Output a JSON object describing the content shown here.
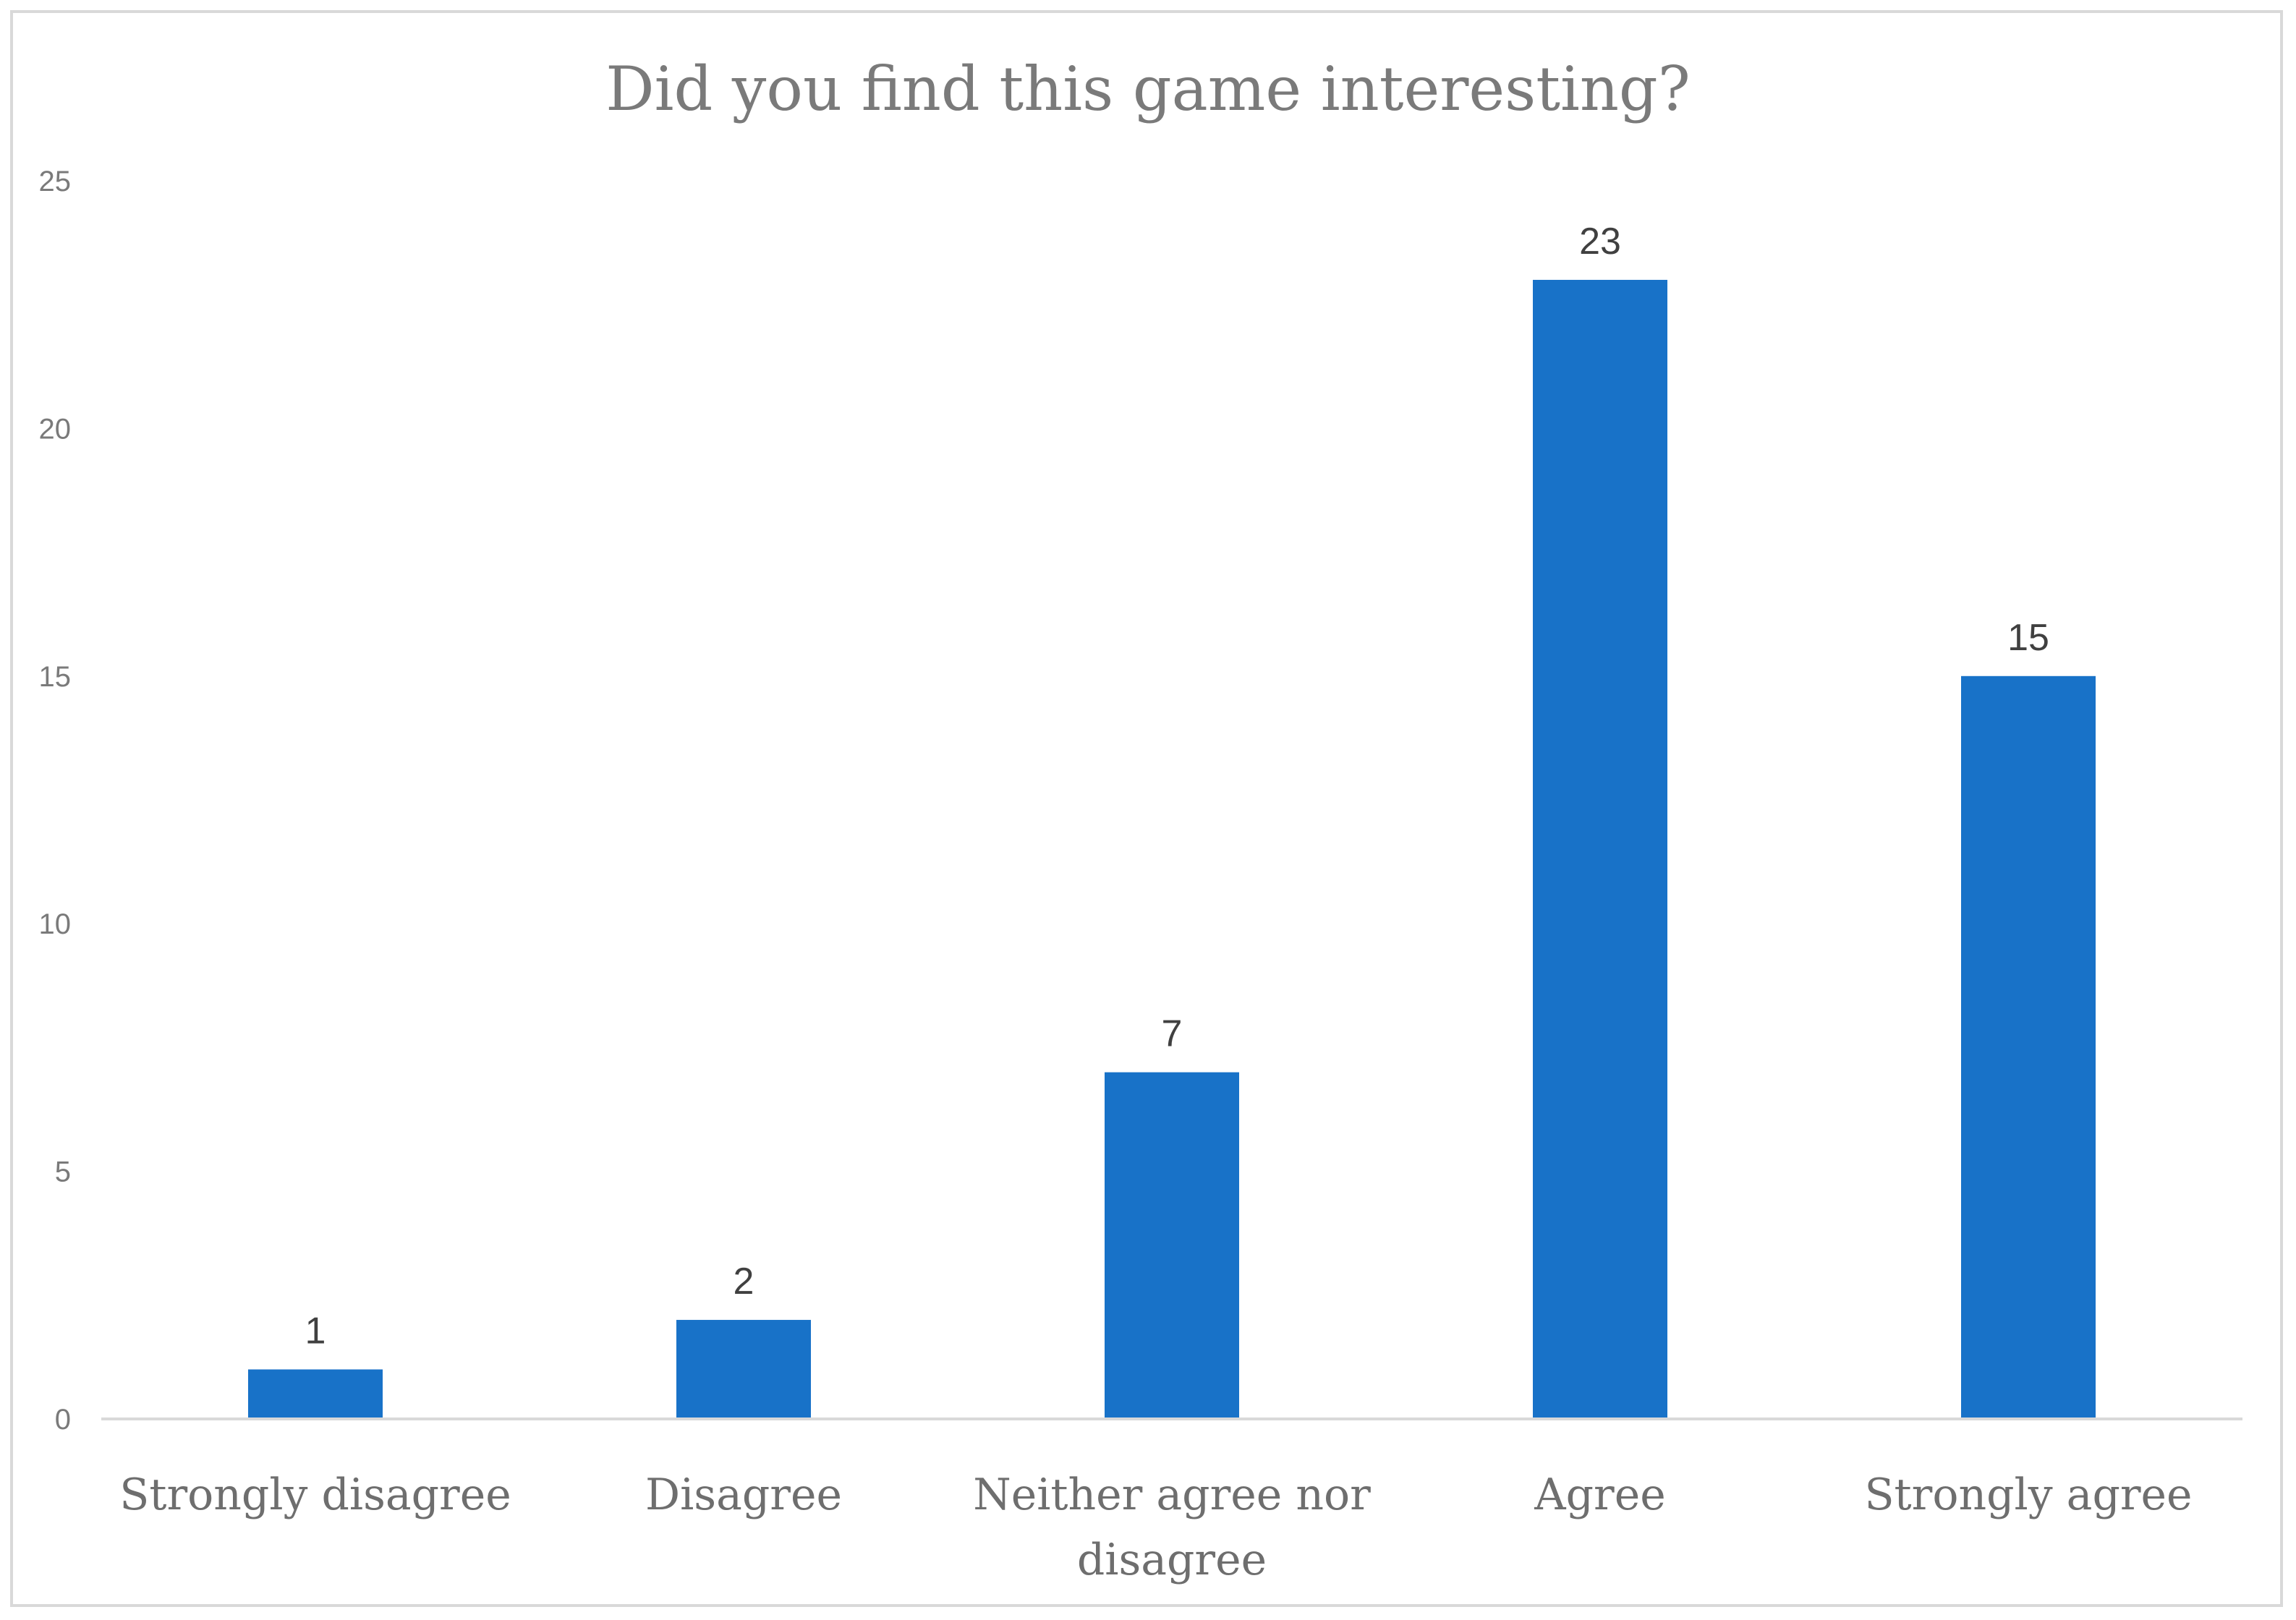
{
  "chart_data": {
    "type": "bar",
    "title": "Did you find this game interesting?",
    "categories": [
      [
        "Strongly disagree"
      ],
      [
        "Disagree"
      ],
      [
        "Neither agree nor",
        "disagree"
      ],
      [
        "Agree"
      ],
      [
        "Strongly agree"
      ]
    ],
    "values": [
      1,
      2,
      7,
      23,
      15
    ],
    "ylim": [
      0,
      25
    ],
    "yticks": [
      0,
      5,
      10,
      15,
      20,
      25
    ],
    "grid": false,
    "data_labels": true,
    "legend": "none",
    "colors": {
      "bar": "#1872c8",
      "axis": "#d9d9d9",
      "border": "#d9d9d9"
    }
  }
}
